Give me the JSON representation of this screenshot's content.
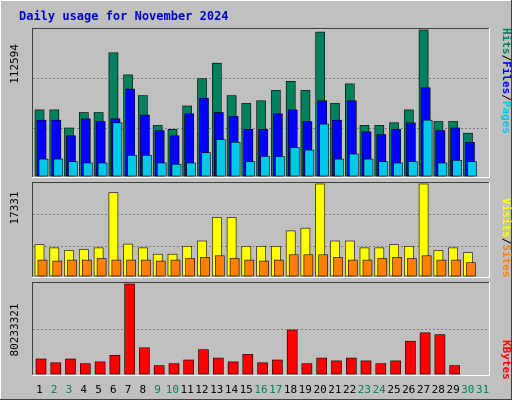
{
  "title": "Daily usage for November 2024",
  "colors": {
    "background": "#c0c0c0",
    "panel": "#c0c0c0",
    "title": "#0000cc",
    "hits": "#00805c",
    "files": "#0000ff",
    "pages": "#00c8e8",
    "visits": "#ffff00",
    "sites": "#ff8000",
    "kbytes": "#ff0000",
    "day_weekday": "#000000",
    "day_weekend": "#00805c"
  },
  "legend": {
    "pages": "Pages",
    "files": "Files",
    "hits": "Hits",
    "sep": "/",
    "sites": "Sites",
    "visits": "Visits",
    "kbytes": "KBytes"
  },
  "chart_data": [
    {
      "type": "bar",
      "title": "Daily usage for November 2024",
      "panel": "hits-files-pages",
      "ymax_label": "112594",
      "ylim": [
        0,
        112594
      ],
      "categories": [
        "1",
        "2",
        "3",
        "4",
        "5",
        "6",
        "7",
        "8",
        "9",
        "10",
        "11",
        "12",
        "13",
        "14",
        "15",
        "16",
        "17",
        "18",
        "19",
        "20",
        "21",
        "22",
        "23",
        "24",
        "25",
        "26",
        "27",
        "28",
        "29",
        "30",
        "31"
      ],
      "weekend": [
        false,
        true,
        true,
        false,
        false,
        false,
        false,
        false,
        true,
        true,
        false,
        false,
        false,
        false,
        false,
        true,
        true,
        false,
        false,
        false,
        false,
        false,
        true,
        true,
        false,
        false,
        false,
        false,
        false,
        true,
        true
      ],
      "series": [
        {
          "name": "Hits",
          "values": [
            51000,
            51000,
            37000,
            49000,
            49000,
            95000,
            78000,
            62000,
            39000,
            36000,
            54000,
            75000,
            87000,
            62000,
            56000,
            58000,
            66000,
            73000,
            66000,
            111000,
            56000,
            71000,
            39000,
            39000,
            41000,
            51000,
            112594,
            42000,
            42000,
            33000,
            0
          ]
        },
        {
          "name": "Files",
          "values": [
            43000,
            43000,
            31000,
            44000,
            42000,
            44000,
            67000,
            47000,
            35000,
            31000,
            48000,
            60000,
            49000,
            46000,
            36000,
            36000,
            48000,
            51000,
            42000,
            58000,
            43000,
            58000,
            34000,
            32000,
            36000,
            41000,
            68000,
            35000,
            37000,
            26000,
            0
          ]
        },
        {
          "name": "Pages",
          "values": [
            13000,
            13000,
            11000,
            10000,
            10000,
            41000,
            16000,
            16000,
            10000,
            9000,
            10000,
            18000,
            28000,
            26000,
            11000,
            15000,
            15000,
            22000,
            20000,
            40000,
            13000,
            17000,
            13000,
            11000,
            10000,
            11000,
            43000,
            10000,
            12000,
            11000,
            0
          ]
        }
      ]
    },
    {
      "type": "bar",
      "panel": "visits-sites",
      "ymax_label": "17331",
      "ylim": [
        0,
        17331
      ],
      "categories": [
        "1",
        "2",
        "3",
        "4",
        "5",
        "6",
        "7",
        "8",
        "9",
        "10",
        "11",
        "12",
        "13",
        "14",
        "15",
        "16",
        "17",
        "18",
        "19",
        "20",
        "21",
        "22",
        "23",
        "24",
        "25",
        "26",
        "27",
        "28",
        "29",
        "30",
        "31"
      ],
      "series": [
        {
          "name": "Visits",
          "values": [
            5900,
            5300,
            4800,
            5000,
            5300,
            15700,
            6000,
            5300,
            4100,
            4100,
            5600,
            6600,
            11000,
            11000,
            5600,
            5600,
            5600,
            8500,
            9000,
            17331,
            6600,
            6600,
            5300,
            5300,
            5900,
            5600,
            17331,
            4800,
            5300,
            4400,
            0
          ]
        },
        {
          "name": "Sites",
          "values": [
            3000,
            2800,
            3000,
            3000,
            3300,
            3000,
            3000,
            3000,
            2800,
            3000,
            3300,
            3500,
            3800,
            3300,
            3000,
            2800,
            3000,
            4000,
            4000,
            4000,
            3500,
            3000,
            3000,
            3300,
            3500,
            3300,
            3800,
            3000,
            3000,
            2500,
            0
          ]
        }
      ]
    },
    {
      "type": "bar",
      "panel": "kbytes",
      "ymax_label": "80233321",
      "ylim": [
        0,
        80233321
      ],
      "categories": [
        "1",
        "2",
        "3",
        "4",
        "5",
        "6",
        "7",
        "8",
        "9",
        "10",
        "11",
        "12",
        "13",
        "14",
        "15",
        "16",
        "17",
        "18",
        "19",
        "20",
        "21",
        "22",
        "23",
        "24",
        "25",
        "26",
        "27",
        "28",
        "29",
        "30",
        "31"
      ],
      "series": [
        {
          "name": "KBytes",
          "values": [
            13400000,
            10000000,
            13400000,
            9200000,
            10800000,
            16700000,
            80233321,
            23400000,
            7500000,
            9200000,
            12500000,
            21700000,
            14200000,
            10800000,
            17500000,
            10000000,
            12500000,
            39200000,
            9200000,
            14200000,
            11700000,
            14200000,
            11700000,
            9200000,
            11700000,
            29200000,
            36700000,
            35000000,
            7500000,
            0,
            0
          ]
        }
      ]
    }
  ]
}
